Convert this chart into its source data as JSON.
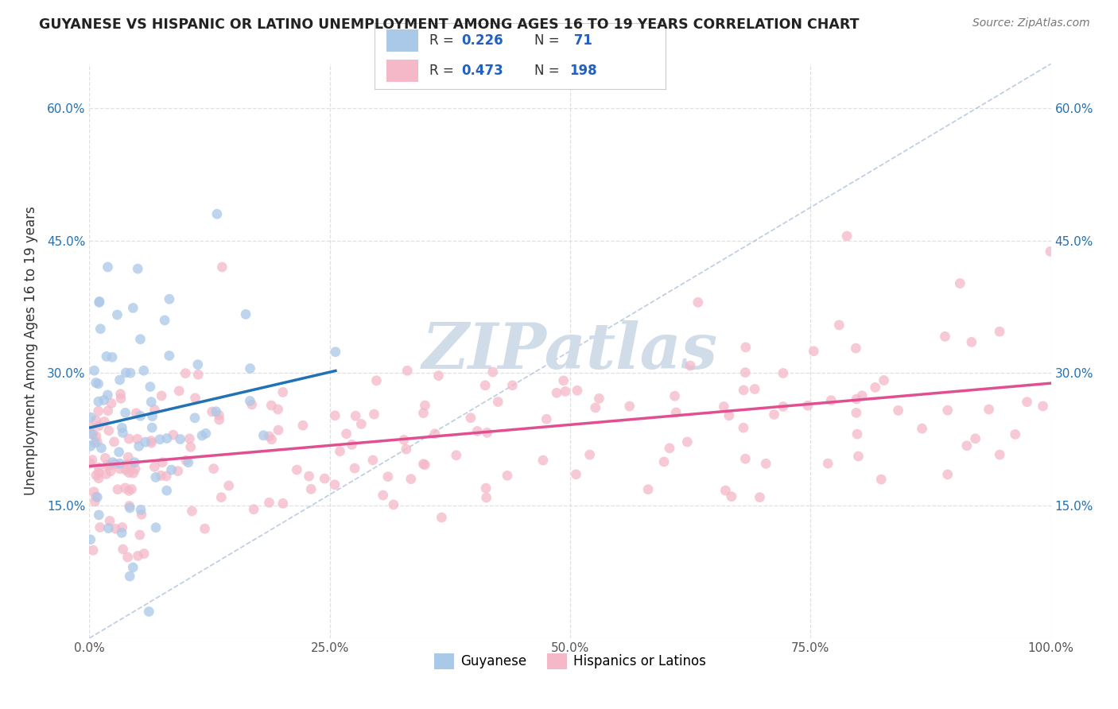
{
  "title": "GUYANESE VS HISPANIC OR LATINO UNEMPLOYMENT AMONG AGES 16 TO 19 YEARS CORRELATION CHART",
  "source": "Source: ZipAtlas.com",
  "ylabel": "Unemployment Among Ages 16 to 19 years",
  "x_min": 0.0,
  "x_max": 1.0,
  "y_min": 0.0,
  "y_max": 0.65,
  "x_ticks": [
    0.0,
    0.25,
    0.5,
    0.75,
    1.0
  ],
  "x_tick_labels": [
    "0.0%",
    "25.0%",
    "50.0%",
    "75.0%",
    "100.0%"
  ],
  "y_ticks": [
    0.0,
    0.15,
    0.3,
    0.45,
    0.6
  ],
  "y_tick_labels": [
    "",
    "15.0%",
    "30.0%",
    "45.0%",
    "60.0%"
  ],
  "color_blue_scatter": "#aac8e8",
  "color_pink_scatter": "#f4b8c8",
  "color_blue_line": "#2171b5",
  "color_pink_line": "#e05090",
  "color_diag": "#b0c4de",
  "legend_label1": "Guyanese",
  "legend_label2": "Hispanics or Latinos",
  "background_color": "#ffffff",
  "grid_color": "#e0e0e0",
  "watermark_color": "#d0dce8",
  "tick_color_y": "#2171b5",
  "tick_color_x": "#555555",
  "legend_text_color": "#2060c0"
}
